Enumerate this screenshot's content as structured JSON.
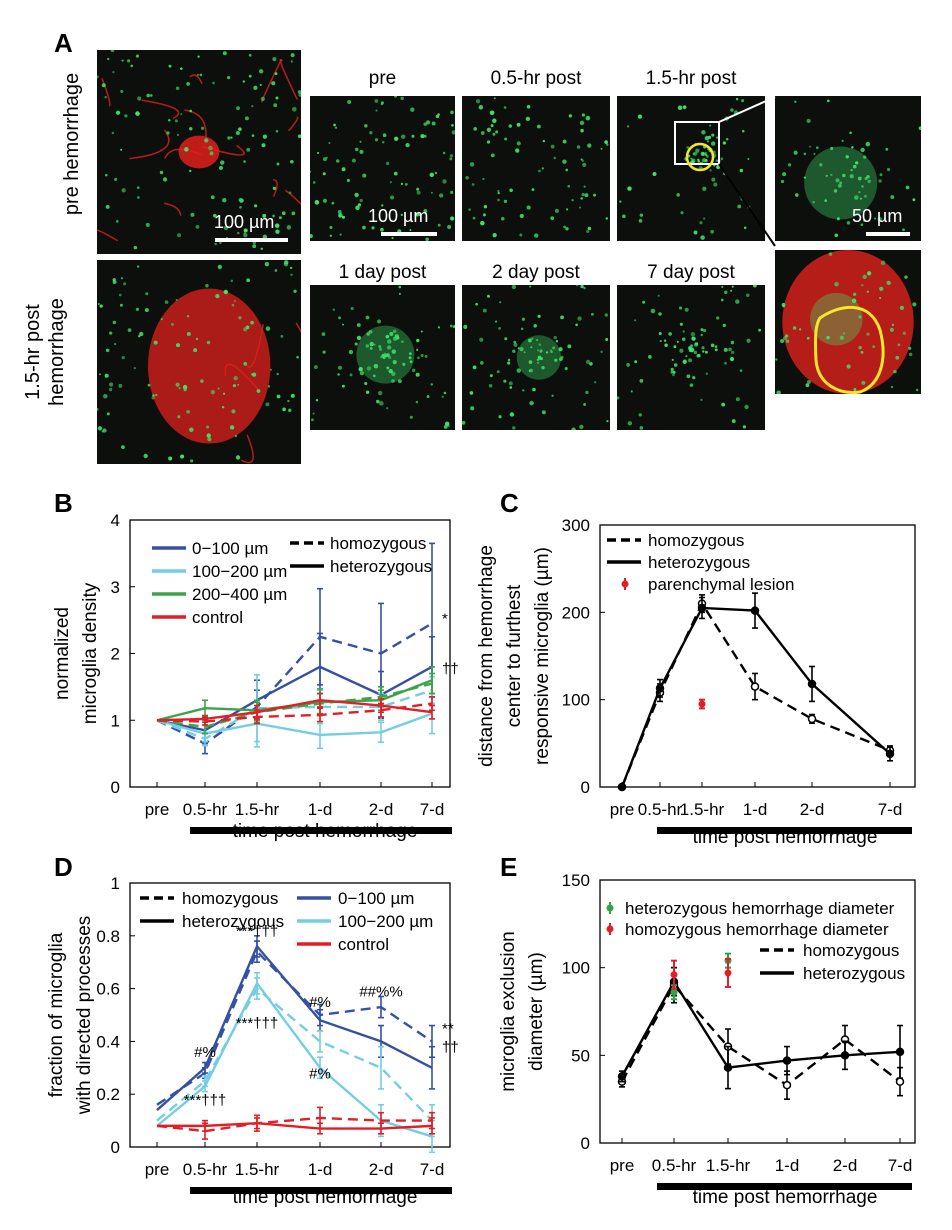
{
  "panel_a": {
    "label": "A",
    "row_labels": [
      "pre hemorrhage",
      "1.5-hr post hemorrhage"
    ],
    "titles_top": [
      "pre",
      "0.5-hr post",
      "1.5-hr post"
    ],
    "titles_bottom": [
      "1 day post",
      "2 day post",
      "7 day post"
    ],
    "scalebars": [
      "100 µm",
      "100 µm",
      "50 µm"
    ],
    "colors": {
      "microglia": "#3fe26a",
      "vessels": "#e0201c",
      "roi": "#f5e62a",
      "background": "#0d0f0d"
    }
  },
  "panel_labels": [
    "B",
    "C",
    "D",
    "E"
  ],
  "chart_data": [
    {
      "panel": "B",
      "type": "line",
      "categories": [
        "pre",
        "0.5-hr",
        "1.5-hr",
        "1-d",
        "2-d",
        "7-d"
      ],
      "xlabel": "time post hemorrhage",
      "ylabel": "normalized microglia density",
      "ylim": [
        0,
        4
      ],
      "yticks": [
        "0",
        "1",
        "2",
        "3",
        "4"
      ],
      "legend_colors": [
        "0−100 µm",
        "100−200 µm",
        "200−400 µm",
        "control"
      ],
      "legend_styles": [
        "homozygous",
        "heterozygous"
      ],
      "series": [
        {
          "name": "0−100 µm",
          "style": "heterozygous",
          "color": "#3551a4",
          "values": [
            1,
            0.85,
            1.3,
            1.8,
            1.38,
            1.8
          ],
          "errors": [
            0,
            0.2,
            0.3,
            0.5,
            0.35,
            0.45
          ]
        },
        {
          "name": "0−100 µm",
          "style": "homozygous",
          "color": "#3551a4",
          "values": [
            1,
            0.65,
            1.2,
            2.25,
            2.0,
            2.45
          ],
          "errors": [
            0,
            0.15,
            0.25,
            0.72,
            0.75,
            1.2
          ]
        },
        {
          "name": "100−200 µm",
          "style": "heterozygous",
          "color": "#74cde3",
          "values": [
            1,
            0.8,
            0.95,
            0.78,
            0.82,
            1.1
          ],
          "errors": [
            0,
            0.12,
            0.35,
            0.2,
            0.15,
            0.3
          ]
        },
        {
          "name": "100−200 µm",
          "style": "homozygous",
          "color": "#74cde3",
          "values": [
            1,
            0.72,
            1.18,
            1.2,
            1.2,
            1.45
          ],
          "errors": [
            0,
            0.1,
            0.5,
            0.25,
            0.2,
            0.2
          ]
        },
        {
          "name": "200−400 µm",
          "style": "heterozygous",
          "color": "#3da34a",
          "values": [
            1,
            1.18,
            1.15,
            1.27,
            1.3,
            1.6
          ],
          "errors": [
            0,
            0.12,
            0.15,
            0.2,
            0.15,
            0.2
          ]
        },
        {
          "name": "200−400 µm",
          "style": "homozygous",
          "color": "#3da34a",
          "values": [
            1,
            0.9,
            1.12,
            1.25,
            1.35,
            1.55
          ],
          "errors": [
            0,
            0.1,
            0.15,
            0.15,
            0.15,
            0.15
          ]
        },
        {
          "name": "control",
          "style": "heterozygous",
          "color": "#e21f26",
          "values": [
            1,
            1.02,
            1.12,
            1.3,
            1.22,
            1.12
          ],
          "errors": [
            0,
            0.05,
            0.1,
            0.1,
            0.1,
            0.1
          ]
        },
        {
          "name": "control",
          "style": "homozygous",
          "color": "#e21f26",
          "values": [
            1,
            0.98,
            1.05,
            1.08,
            1.15,
            1.25
          ],
          "errors": [
            0,
            0.05,
            0.1,
            0.1,
            0.1,
            0.1
          ]
        }
      ],
      "annotations": [
        {
          "text": "*",
          "x": "7-d",
          "y": 2.45
        },
        {
          "text": "††",
          "x": "7-d",
          "y": 1.7
        }
      ]
    },
    {
      "panel": "C",
      "type": "line",
      "categories": [
        "pre",
        "0.5-hr",
        "1.5-hr",
        "1-d",
        "2-d",
        "7-d"
      ],
      "xlabel": "time post hemorrhage",
      "ylabel": "distance from hemorrhage center to furthest responsive microglia (µm)",
      "ylim": [
        0,
        300
      ],
      "yticks": [
        "0",
        "100",
        "200",
        "300"
      ],
      "legend": [
        "homozygous",
        "heterozygous",
        "parenchymal lesion"
      ],
      "series": [
        {
          "name": "homozygous",
          "color": "#000000",
          "values": [
            0,
            108,
            210,
            115,
            78,
            42
          ],
          "errors": [
            0,
            10,
            10,
            15,
            5,
            5
          ]
        },
        {
          "name": "heterozygous",
          "color": "#000000",
          "values": [
            0,
            113,
            205,
            202,
            118,
            38
          ],
          "errors": [
            0,
            10,
            12,
            20,
            20,
            8
          ]
        },
        {
          "name": "parenchymal lesion",
          "color": "#e21f26",
          "points": [
            {
              "x": "1.5-hr",
              "y": 95,
              "error": 5
            }
          ]
        }
      ]
    },
    {
      "panel": "D",
      "type": "line",
      "categories": [
        "pre",
        "0.5-hr",
        "1.5-hr",
        "1-d",
        "2-d",
        "7-d"
      ],
      "xlabel": "time post hemorrhage",
      "ylabel": "fraction of microglia with directed processes",
      "ylim": [
        0,
        1
      ],
      "yticks": [
        "0",
        "0.2",
        "0.4",
        "0.6",
        "0.8",
        "1"
      ],
      "legend_styles": [
        "homozygous",
        "heterozygous"
      ],
      "legend_colors": [
        "0−100 µm",
        "100−200 µm",
        "control"
      ],
      "series": [
        {
          "name": "0−100 µm",
          "style": "heterozygous",
          "color": "#3551a4",
          "values": [
            0.14,
            0.3,
            0.76,
            0.48,
            0.4,
            0.3
          ],
          "errors": [
            0,
            0.02,
            0.04,
            0.04,
            0.06,
            0.08
          ]
        },
        {
          "name": "0−100 µm",
          "style": "homozygous",
          "color": "#3551a4",
          "values": [
            0.16,
            0.28,
            0.74,
            0.5,
            0.53,
            0.4
          ],
          "errors": [
            0,
            0.02,
            0.04,
            0.04,
            0.04,
            0.06
          ]
        },
        {
          "name": "100−200 µm",
          "style": "heterozygous",
          "color": "#74cde3",
          "values": [
            0.08,
            0.23,
            0.62,
            0.3,
            0.1,
            0.04
          ],
          "errors": [
            0,
            0.02,
            0.04,
            0.04,
            0.06,
            0.06
          ]
        },
        {
          "name": "100−200 µm",
          "style": "homozygous",
          "color": "#74cde3",
          "values": [
            0.1,
            0.25,
            0.6,
            0.4,
            0.3,
            0.1
          ],
          "errors": [
            0,
            0.02,
            0.04,
            0.04,
            0.08,
            0.06
          ]
        },
        {
          "name": "control",
          "style": "heterozygous",
          "color": "#e21f26",
          "values": [
            0.08,
            0.08,
            0.09,
            0.07,
            0.07,
            0.08
          ],
          "errors": [
            0,
            0.02,
            0.02,
            0.02,
            0.02,
            0.03
          ]
        },
        {
          "name": "control",
          "style": "homozygous",
          "color": "#e21f26",
          "values": [
            0.08,
            0.06,
            0.09,
            0.11,
            0.1,
            0.1
          ],
          "errors": [
            0,
            0.03,
            0.03,
            0.04,
            0.03,
            0.03
          ]
        }
      ],
      "annotations": [
        {
          "text": "#%",
          "x": "0.5-hr",
          "y": 0.34
        },
        {
          "text": "***†††",
          "x": "0.5-hr",
          "y": 0.16
        },
        {
          "text": "***†††",
          "x": "1.5-hr",
          "y": 0.8
        },
        {
          "text": "***†††",
          "x": "1.5-hr",
          "y": 0.45
        },
        {
          "text": "#%",
          "x": "1-d",
          "y": 0.53
        },
        {
          "text": "#%",
          "x": "1-d",
          "y": 0.26
        },
        {
          "text": "##%%",
          "x": "2-d",
          "y": 0.57
        },
        {
          "text": "**",
          "x": "7-d",
          "y": 0.43
        },
        {
          "text": "††",
          "x": "7-d",
          "y": 0.36
        }
      ]
    },
    {
      "panel": "E",
      "type": "line",
      "categories": [
        "pre",
        "0.5-hr",
        "1.5-hr",
        "1-d",
        "2-d",
        "7-d"
      ],
      "xlabel": "time post hemorrhage",
      "ylabel": "microglia exclusion diameter (µm)",
      "ylim": [
        0,
        150
      ],
      "yticks": [
        "0",
        "50",
        "100",
        "150"
      ],
      "legend": [
        "heterozygous hemorrhage diameter",
        "homozygous hemorrhage diameter",
        "homozygous",
        "heterozygous"
      ],
      "series": [
        {
          "name": "homozygous",
          "color": "#000000",
          "values": [
            35,
            90,
            55,
            33,
            59,
            35
          ],
          "errors": [
            3,
            10,
            10,
            8,
            8,
            8
          ]
        },
        {
          "name": "heterozygous",
          "color": "#000000",
          "values": [
            38,
            92,
            43,
            47,
            50,
            52
          ],
          "errors": [
            3,
            8,
            12,
            8,
            8,
            15
          ]
        },
        {
          "name": "heterozygous hemorrhage diameter",
          "color": "#2fa34a",
          "points": [
            {
              "x": "0.5-hr",
              "y": 86,
              "error": 4
            },
            {
              "x": "1.5-hr",
              "y": 104,
              "error": 4
            }
          ]
        },
        {
          "name": "homozygous hemorrhage diameter",
          "color": "#e21f26",
          "points": [
            {
              "x": "0.5-hr",
              "y": 96,
              "error": 8
            },
            {
              "x": "1.5-hr",
              "y": 97,
              "error": 8
            }
          ]
        }
      ]
    }
  ]
}
